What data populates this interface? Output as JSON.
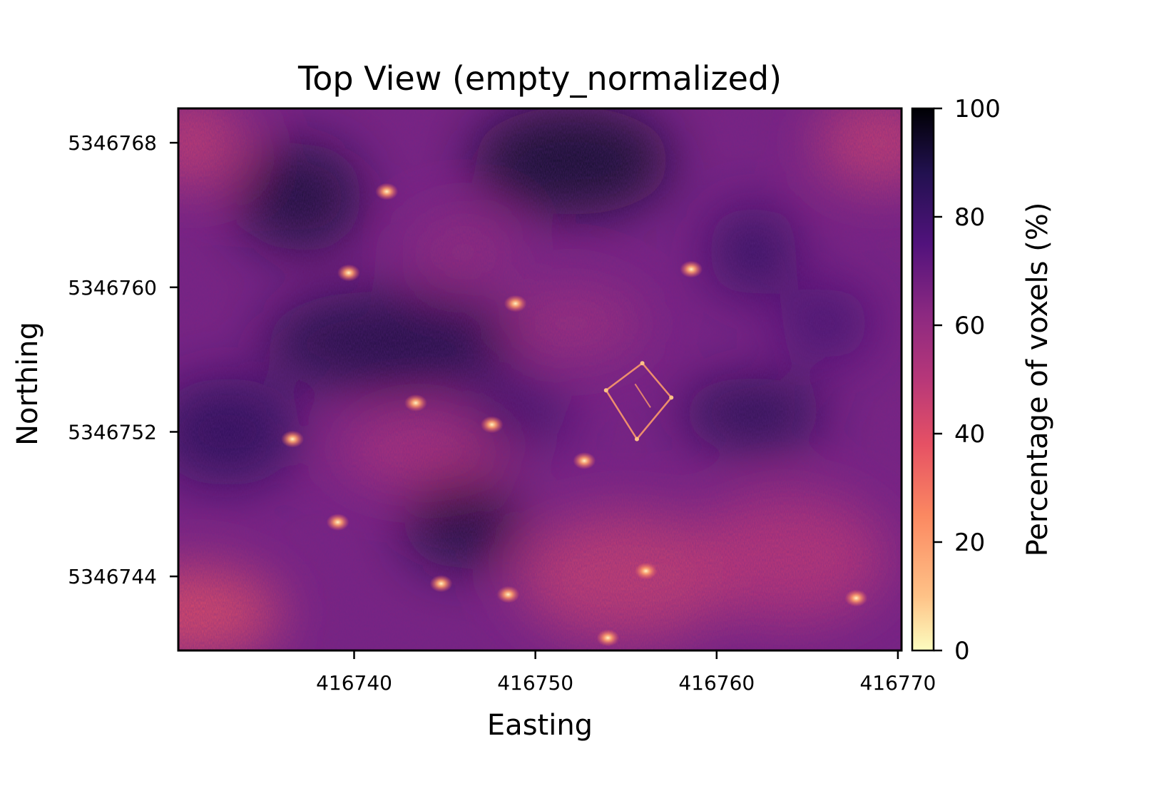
{
  "chart_data": {
    "type": "heatmap",
    "title": "Top View (empty_normalized)",
    "xlabel": "Easting",
    "ylabel": "Northing",
    "colormap": "magma_r",
    "x_ticks": [
      416740,
      416750,
      416760,
      416770
    ],
    "y_ticks": [
      5346768,
      5346760,
      5346752,
      5346744
    ],
    "xlim": [
      416730.3,
      416770.2
    ],
    "ylim": [
      5346739.9,
      5346769.9
    ],
    "colorbar": {
      "label": "Percentage of voxels (%)",
      "range": [
        0,
        100
      ],
      "ticks": [
        0,
        20,
        40,
        60,
        80,
        100
      ]
    },
    "dark_regions": [
      {
        "x": 416737,
        "y": 5346765,
        "rx": 3.5,
        "ry": 3.0,
        "v": 92
      },
      {
        "x": 416752,
        "y": 5346767,
        "rx": 5.5,
        "ry": 3.0,
        "v": 94
      },
      {
        "x": 416762,
        "y": 5346762,
        "rx": 2.5,
        "ry": 2.5,
        "v": 84
      },
      {
        "x": 416742,
        "y": 5346757,
        "rx": 7.0,
        "ry": 2.8,
        "v": 90
      },
      {
        "x": 416733,
        "y": 5346752,
        "rx": 4.0,
        "ry": 3.0,
        "v": 86
      },
      {
        "x": 416746,
        "y": 5346747,
        "rx": 3.2,
        "ry": 2.6,
        "v": 92
      },
      {
        "x": 416762,
        "y": 5346753,
        "rx": 4.0,
        "ry": 2.0,
        "v": 88
      },
      {
        "x": 416749,
        "y": 5346753,
        "rx": 3.0,
        "ry": 1.8,
        "v": 82
      },
      {
        "x": 416766,
        "y": 5346758,
        "rx": 2.5,
        "ry": 2.0,
        "v": 80
      }
    ],
    "light_regions": [
      {
        "x": 416731,
        "y": 5346742,
        "rx": 5.0,
        "ry": 2.5,
        "v": 38
      },
      {
        "x": 416755,
        "y": 5346744,
        "rx": 6.0,
        "ry": 3.5,
        "v": 45
      },
      {
        "x": 416764,
        "y": 5346745,
        "rx": 5.5,
        "ry": 3.5,
        "v": 48
      },
      {
        "x": 416744,
        "y": 5346751,
        "rx": 5.0,
        "ry": 2.0,
        "v": 50
      },
      {
        "x": 416731,
        "y": 5346768,
        "rx": 3.0,
        "ry": 2.5,
        "v": 45
      },
      {
        "x": 416769,
        "y": 5346768,
        "rx": 3.5,
        "ry": 2.5,
        "v": 45
      },
      {
        "x": 416752,
        "y": 5346758,
        "rx": 4.0,
        "ry": 2.0,
        "v": 55
      },
      {
        "x": 416746,
        "y": 5346762,
        "rx": 3.0,
        "ry": 2.0,
        "v": 58
      }
    ],
    "hotspots": [
      {
        "x": 416741.8,
        "y": 5346765.3
      },
      {
        "x": 416739.7,
        "y": 5346760.8
      },
      {
        "x": 416748.9,
        "y": 5346759.1
      },
      {
        "x": 416758.6,
        "y": 5346761.0
      },
      {
        "x": 416743.4,
        "y": 5346753.6
      },
      {
        "x": 416747.6,
        "y": 5346752.4
      },
      {
        "x": 416736.6,
        "y": 5346751.6
      },
      {
        "x": 416752.7,
        "y": 5346750.4
      },
      {
        "x": 416739.1,
        "y": 5346747.0
      },
      {
        "x": 416744.8,
        "y": 5346743.6
      },
      {
        "x": 416748.5,
        "y": 5346743.0
      },
      {
        "x": 416756.1,
        "y": 5346744.3
      },
      {
        "x": 416767.7,
        "y": 5346742.8
      },
      {
        "x": 416754.0,
        "y": 5346740.6
      }
    ],
    "outline": [
      {
        "x": 416755.9,
        "y": 5346755.8
      },
      {
        "x": 416757.5,
        "y": 5346753.9
      },
      {
        "x": 416755.6,
        "y": 5346751.6
      },
      {
        "x": 416753.9,
        "y": 5346754.3
      }
    ]
  }
}
